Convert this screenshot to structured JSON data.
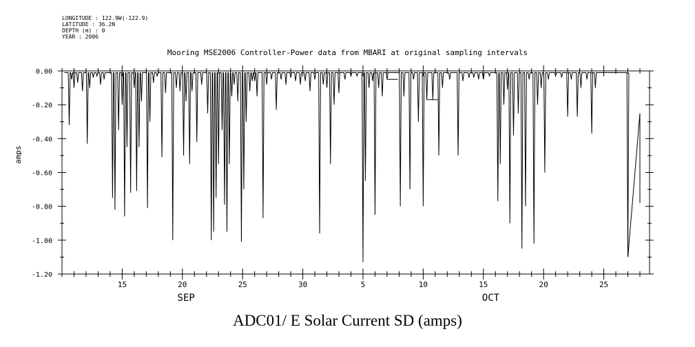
{
  "metadata": {
    "longitude": "LONGITUDE : 122.9W(-122.9)",
    "latitude": "LATITUDE : 36.2N",
    "depth": "DEPTH (m) : 0",
    "year": "YEAR : 2006"
  },
  "chart_data": {
    "type": "line",
    "title": "Mooring MSE2006 Controller-Power data from MBARI at original sampling intervals",
    "footer_title": "ADC01/ E Solar Current SD (amps)",
    "ylabel": "amps",
    "ylim": [
      -1.2,
      0.0
    ],
    "yticks": [
      "0.00",
      "-0.20",
      "-0.40",
      "-0.60",
      "-0.80",
      "-1.00",
      "-1.20"
    ],
    "xlim": [
      10.0,
      58.8
    ],
    "xticks": [
      {
        "day": 15,
        "label": "15"
      },
      {
        "day": 20,
        "label": "20"
      },
      {
        "day": 25,
        "label": "25"
      },
      {
        "day": 30,
        "label": "30"
      },
      {
        "day": 35,
        "label": "5"
      },
      {
        "day": 40,
        "label": "10"
      },
      {
        "day": 45,
        "label": "15"
      },
      {
        "day": 50,
        "label": "20"
      },
      {
        "day": 55,
        "label": "25"
      }
    ],
    "months": [
      {
        "label": "SEP",
        "day": 20.5
      },
      {
        "label": "OCT",
        "day": 45.8
      }
    ],
    "grid": false,
    "series": [
      {
        "spikes": [
          [
            10.6,
            -0.32
          ],
          [
            10.8,
            -0.05
          ],
          [
            11.0,
            -0.1
          ],
          [
            11.3,
            -0.07
          ],
          [
            11.7,
            -0.12
          ],
          [
            12.1,
            -0.43
          ],
          [
            12.3,
            -0.1
          ],
          [
            12.6,
            -0.04
          ],
          [
            12.9,
            -0.03
          ],
          [
            13.2,
            -0.08
          ],
          [
            13.5,
            -0.05
          ],
          [
            14.2,
            -0.75
          ],
          [
            14.4,
            -0.82
          ],
          [
            14.7,
            -0.35
          ],
          [
            15.0,
            -0.2
          ],
          [
            15.2,
            -0.86
          ],
          [
            15.4,
            -0.45
          ],
          [
            15.7,
            -0.72
          ],
          [
            16.0,
            -0.1
          ],
          [
            16.2,
            -0.71
          ],
          [
            16.4,
            -0.45
          ],
          [
            16.6,
            -0.18
          ],
          [
            17.1,
            -0.81
          ],
          [
            17.3,
            -0.3
          ],
          [
            17.6,
            -0.07
          ],
          [
            17.9,
            -0.03
          ],
          [
            18.3,
            -0.51
          ],
          [
            18.6,
            -0.13
          ],
          [
            19.2,
            -1.0
          ],
          [
            19.5,
            -0.1
          ],
          [
            19.8,
            -0.12
          ],
          [
            20.1,
            -0.5
          ],
          [
            20.3,
            -0.18
          ],
          [
            20.6,
            -0.55
          ],
          [
            20.8,
            -0.12
          ],
          [
            21.2,
            -0.42
          ],
          [
            21.6,
            -0.08
          ],
          [
            22.1,
            -0.25
          ],
          [
            22.4,
            -1.0
          ],
          [
            22.6,
            -0.95
          ],
          [
            22.8,
            -0.75
          ],
          [
            23.0,
            -0.55
          ],
          [
            23.3,
            -0.35
          ],
          [
            23.5,
            -0.79
          ],
          [
            23.7,
            -0.95
          ],
          [
            23.9,
            -0.55
          ],
          [
            24.1,
            -0.15
          ],
          [
            24.3,
            -0.08
          ],
          [
            24.6,
            -0.18
          ],
          [
            24.9,
            -1.01
          ],
          [
            25.1,
            -0.7
          ],
          [
            25.3,
            -0.3
          ],
          [
            25.6,
            -0.12
          ],
          [
            25.8,
            -0.06
          ],
          [
            26.0,
            -0.06
          ],
          [
            26.2,
            -0.15
          ],
          [
            26.7,
            -0.87
          ],
          [
            27.0,
            -0.08
          ],
          [
            27.4,
            -0.05
          ],
          [
            27.8,
            -0.23
          ],
          [
            28.2,
            -0.05
          ],
          [
            28.6,
            -0.08
          ],
          [
            29.0,
            -0.04
          ],
          [
            29.4,
            -0.06
          ],
          [
            29.8,
            -0.08
          ],
          [
            30.2,
            -0.06
          ],
          [
            30.6,
            -0.12
          ],
          [
            31.0,
            -0.05
          ],
          [
            31.4,
            -0.96
          ],
          [
            31.7,
            -0.08
          ],
          [
            32.0,
            -0.1
          ],
          [
            32.3,
            -0.55
          ],
          [
            32.6,
            -0.2
          ],
          [
            33.0,
            -0.13
          ],
          [
            33.5,
            -0.05
          ],
          [
            34.0,
            -0.03
          ],
          [
            34.5,
            -0.03
          ],
          [
            35.0,
            -1.13
          ],
          [
            35.2,
            -0.65
          ],
          [
            35.5,
            -0.1
          ],
          [
            35.8,
            -0.06
          ],
          [
            36.0,
            -0.85
          ],
          [
            36.3,
            -0.1
          ],
          [
            36.6,
            -0.15
          ],
          [
            37.0,
            -0.05
          ],
          [
            38.1,
            -0.8
          ],
          [
            38.4,
            -0.15
          ],
          [
            38.9,
            -0.7
          ],
          [
            39.2,
            -0.05
          ],
          [
            39.6,
            -0.3
          ],
          [
            40.0,
            -0.8
          ],
          [
            40.3,
            -0.17
          ],
          [
            40.8,
            -0.17
          ],
          [
            41.3,
            -0.5
          ],
          [
            41.6,
            -0.1
          ],
          [
            42.2,
            -0.05
          ],
          [
            42.9,
            -0.5
          ],
          [
            43.3,
            -0.06
          ],
          [
            43.8,
            -0.04
          ],
          [
            44.2,
            -0.04
          ],
          [
            44.6,
            -0.05
          ],
          [
            45.0,
            -0.05
          ],
          [
            45.5,
            -0.03
          ],
          [
            46.2,
            -0.77
          ],
          [
            46.4,
            -0.55
          ],
          [
            46.7,
            -0.2
          ],
          [
            47.0,
            -0.11
          ],
          [
            47.2,
            -0.9
          ],
          [
            47.5,
            -0.38
          ],
          [
            47.9,
            -0.25
          ],
          [
            48.2,
            -1.05
          ],
          [
            48.5,
            -0.8
          ],
          [
            48.8,
            -0.05
          ],
          [
            49.2,
            -1.02
          ],
          [
            49.5,
            -0.2
          ],
          [
            49.8,
            -0.1
          ],
          [
            50.1,
            -0.6
          ],
          [
            50.4,
            -0.05
          ],
          [
            51.0,
            -0.03
          ],
          [
            51.5,
            -0.04
          ],
          [
            52.0,
            -0.27
          ],
          [
            52.3,
            -0.05
          ],
          [
            52.8,
            -0.27
          ],
          [
            53.1,
            -0.1
          ],
          [
            53.6,
            -0.05
          ],
          [
            54.0,
            -0.37
          ],
          [
            54.3,
            -0.1
          ],
          [
            57.0,
            -1.1
          ]
        ],
        "end_segment": [
          [
            57.0,
            -1.1
          ],
          [
            58.0,
            -0.25
          ],
          [
            58.0,
            -0.78
          ]
        ],
        "flat_segments": [
          [
            [
              37.0,
              -0.05
            ],
            [
              37.9,
              -0.05
            ]
          ],
          [
            [
              40.3,
              -0.17
            ],
            [
              41.2,
              -0.17
            ]
          ],
          [
            [
              54.3,
              0.0
            ],
            [
              57.0,
              0.0
            ]
          ]
        ]
      }
    ]
  }
}
